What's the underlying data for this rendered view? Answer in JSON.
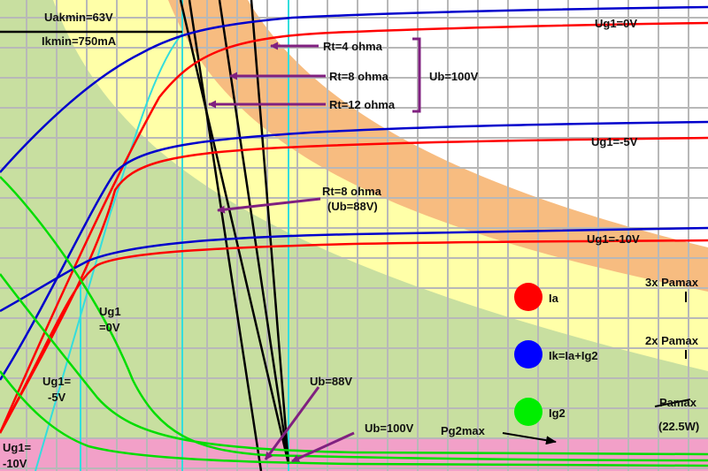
{
  "chart_data": {
    "type": "line",
    "title": "",
    "xlabel": "",
    "ylabel": "",
    "regions": [
      {
        "name": "Pamax",
        "label": "Pamax",
        "sublabel": "(22.5W)"
      },
      {
        "name": "2x Pamax",
        "label": "2x Pamax"
      },
      {
        "name": "3x Pamax",
        "label": "3x Pamax"
      },
      {
        "name": "Pg2max",
        "label": "Pg2max"
      }
    ],
    "series_labels": {
      "ug1_0": "Ug1=0V",
      "ug1_m5": "Ug1=-5V",
      "ug1_m10": "Ug1=-10V",
      "g2_ug1_0_a": "Ug1",
      "g2_ug1_0_b": "=0V",
      "g2_ug1_m5_a": "Ug1=",
      "g2_ug1_m5_b": "-5V",
      "g2_ug1_m10_a": "Ug1=",
      "g2_ug1_m10_b": "-10V"
    },
    "load_lines": [
      {
        "label": "Rt=4 ohma"
      },
      {
        "label": "Rt=8 ohma"
      },
      {
        "label": "Rt=12 ohma"
      },
      {
        "label": "Rt=8 ohma",
        "sublabel": "(Ub=88V)"
      }
    ],
    "annotations": {
      "uakmin": "Uakmin=63V",
      "ikmin": "Ikmin=750mA",
      "ub100_brace": "Ub=100V",
      "ub88": "Ub=88V",
      "ub100": "Ub=100V"
    },
    "legend": [
      {
        "label": "Ia",
        "color": "#ff0000"
      },
      {
        "label": "Ik=Ia+Ig2",
        "color": "#0000ff"
      },
      {
        "label": "Ig2",
        "color": "#00ee00"
      }
    ],
    "grid": true
  },
  "colors": {
    "background": "#ffffff",
    "grid": "#b8b8b8",
    "pamax_fill": "#c8dfa0",
    "pamax2_fill": "#ffffa8",
    "pamax3_fill": "#f7bc80",
    "pg2_fill": "#f2a0c8",
    "ia": "#ff0000",
    "ik": "#0000cc",
    "ig2": "#00dd00",
    "load_line": "#000000",
    "cyan": "#33dddd",
    "arrow": "#802080"
  }
}
